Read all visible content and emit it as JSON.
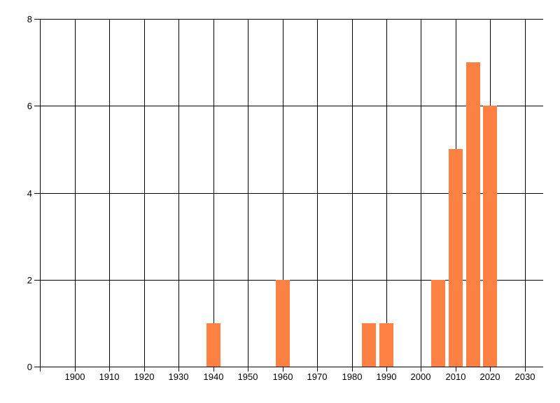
{
  "chart_data": {
    "type": "bar",
    "title": "",
    "xlabel": "",
    "ylabel": "",
    "x": [
      1940,
      1960,
      1985,
      1990,
      2005,
      2010,
      2015,
      2020
    ],
    "values": [
      1,
      2,
      1,
      1,
      2,
      5,
      7,
      6
    ],
    "xlim": [
      1889.9,
      2035.3
    ],
    "ylim": [
      0,
      8
    ],
    "xticks": [
      1900,
      1910,
      1920,
      1930,
      1940,
      1950,
      1960,
      1970,
      1980,
      1990,
      2000,
      2010,
      2020,
      2030
    ],
    "yticks": [
      0,
      2,
      4,
      6,
      8
    ],
    "bar_width_years": 4,
    "grid": true,
    "legend": false,
    "colors": {
      "bar": "#FC8142",
      "grid": "#000000",
      "text": "#000000",
      "background": "#FFFFFF"
    }
  }
}
